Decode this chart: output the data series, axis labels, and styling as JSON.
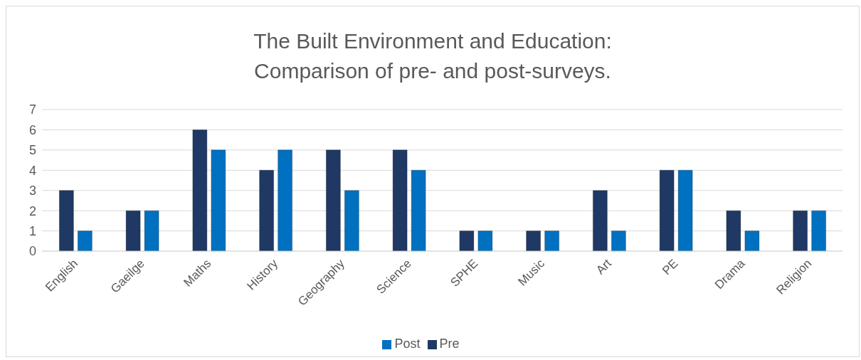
{
  "chart_data": {
    "type": "bar",
    "title": "The Built Environment and Education:\nComparison of pre- and post-surveys.",
    "categories": [
      "English",
      "Gaeilge",
      "Maths",
      "History",
      "Geography",
      "Science",
      "SPHE",
      "Music",
      "Art",
      "PE",
      "Drama",
      "Religion"
    ],
    "series": [
      {
        "name": "Pre",
        "color": "#1f3864",
        "values": [
          3,
          2,
          6,
          4,
          5,
          5,
          1,
          1,
          3,
          4,
          2,
          2
        ]
      },
      {
        "name": "Post",
        "color": "#0070c0",
        "values": [
          1,
          2,
          5,
          5,
          3,
          4,
          1,
          1,
          1,
          4,
          1,
          2
        ]
      }
    ],
    "ylim": [
      0,
      7
    ],
    "yticks": [
      0,
      1,
      2,
      3,
      4,
      5,
      6,
      7
    ],
    "grid": "y",
    "legend": "bottom"
  }
}
